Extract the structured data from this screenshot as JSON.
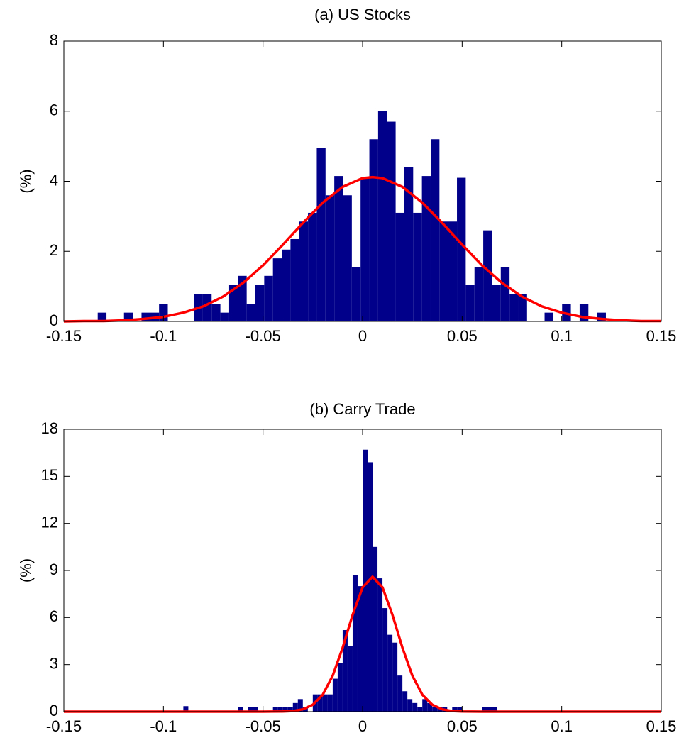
{
  "chart_data": [
    {
      "type": "histogram",
      "title": "(a) US Stocks",
      "ylabel": "(%)",
      "color": "#00008b",
      "bins": [
        -0.133,
        -0.1286,
        -0.1242,
        -0.1198,
        -0.1154,
        -0.111,
        -0.1066,
        -0.1022,
        -0.0978,
        -0.0934,
        -0.089,
        -0.0846,
        -0.0802,
        -0.0758,
        -0.0714,
        -0.067,
        -0.0626,
        -0.0582,
        -0.0538,
        -0.0494,
        -0.045,
        -0.0406,
        -0.0362,
        -0.0318,
        -0.0274,
        -0.023,
        -0.0186,
        -0.0142,
        -0.0098,
        -0.0054,
        -0.001,
        0.0034,
        0.0078,
        0.0122,
        0.0166,
        0.021,
        0.0254,
        0.0298,
        0.0342,
        0.0386,
        0.043,
        0.0474,
        0.0518,
        0.0562,
        0.0606,
        0.065,
        0.0694,
        0.0738,
        0.0782,
        0.0826,
        0.087,
        0.0914,
        0.0958,
        0.1002,
        0.1046,
        0.109,
        0.1134,
        0.1178,
        0.1222
      ],
      "values": [
        0.25,
        0,
        0,
        0.25,
        0,
        0.25,
        0.25,
        0.5,
        0,
        0,
        0,
        0.78,
        0.78,
        0.5,
        0.25,
        1.05,
        1.3,
        0.5,
        1.05,
        1.3,
        1.8,
        2.05,
        2.35,
        2.85,
        3.1,
        4.95,
        3.6,
        4.15,
        3.6,
        1.55,
        4.1,
        5.2,
        6.0,
        5.7,
        3.1,
        4.4,
        3.1,
        4.15,
        5.2,
        2.85,
        2.85,
        4.1,
        1.05,
        1.55,
        2.6,
        1.05,
        1.55,
        0.78,
        0.78,
        0,
        0,
        0.25,
        0,
        0.5,
        0,
        0.5,
        0,
        0.25
      ],
      "overlay": {
        "type": "line",
        "color": "#ff0000",
        "x": [
          -0.15,
          -0.14,
          -0.13,
          -0.12,
          -0.11,
          -0.1,
          -0.09,
          -0.08,
          -0.07,
          -0.06,
          -0.05,
          -0.04,
          -0.03,
          -0.02,
          -0.01,
          0,
          0.005,
          0.01,
          0.02,
          0.03,
          0.04,
          0.05,
          0.06,
          0.07,
          0.08,
          0.09,
          0.1,
          0.11,
          0.12,
          0.13,
          0.14,
          0.15
        ],
        "values": [
          0,
          0.01,
          0.01,
          0.03,
          0.07,
          0.13,
          0.25,
          0.43,
          0.71,
          1.1,
          1.6,
          2.19,
          2.81,
          3.39,
          3.84,
          4.09,
          4.12,
          4.09,
          3.84,
          3.39,
          2.81,
          2.19,
          1.6,
          1.1,
          0.71,
          0.43,
          0.25,
          0.13,
          0.07,
          0.03,
          0.01,
          0.01
        ]
      },
      "xlim": [
        -0.15,
        0.15
      ],
      "xticks": [
        -0.15,
        -0.1,
        -0.05,
        0,
        0.05,
        0.1,
        0.15
      ],
      "ylim": [
        0,
        8
      ],
      "yticks": [
        0,
        2,
        4,
        6,
        8
      ]
    },
    {
      "type": "histogram",
      "title": "(b) Carry Trade",
      "ylabel": "(%)",
      "color": "#00008b",
      "bins": [
        -0.09,
        -0.0875,
        -0.085,
        -0.0825,
        -0.08,
        -0.0775,
        -0.075,
        -0.0725,
        -0.07,
        -0.0675,
        -0.065,
        -0.0625,
        -0.06,
        -0.0575,
        -0.055,
        -0.0525,
        -0.05,
        -0.0475,
        -0.045,
        -0.0425,
        -0.04,
        -0.0375,
        -0.035,
        -0.0325,
        -0.03,
        -0.0275,
        -0.025,
        -0.0225,
        -0.02,
        -0.0175,
        -0.015,
        -0.0125,
        -0.01,
        -0.0075,
        -0.005,
        -0.0025,
        0,
        0.0025,
        0.005,
        0.0075,
        0.01,
        0.0125,
        0.015,
        0.0175,
        0.02,
        0.0225,
        0.025,
        0.0275,
        0.03,
        0.0325,
        0.035,
        0.0375,
        0.04,
        0.0425,
        0.045,
        0.0475,
        0.05,
        0.0525,
        0.055,
        0.0575,
        0.06,
        0.0625,
        0.065,
        0.0675,
        0.07
      ],
      "values": [
        0.35,
        0,
        0,
        0,
        0,
        0,
        0,
        0,
        0,
        0,
        0,
        0.3,
        0,
        0.3,
        0.3,
        0,
        0,
        0,
        0.3,
        0.3,
        0.3,
        0.3,
        0.55,
        0.8,
        0.3,
        0,
        1.1,
        1.1,
        1.1,
        1.1,
        2.1,
        3.1,
        5.2,
        4.2,
        8.7,
        8.0,
        16.7,
        15.9,
        10.5,
        8.5,
        6.6,
        4.9,
        4.4,
        2.3,
        1.3,
        0.8,
        0.55,
        0.3,
        0.8,
        0.55,
        0.3,
        0.3,
        0.3,
        0,
        0.3,
        0.3,
        0,
        0,
        0,
        0,
        0.3,
        0.3,
        0.3,
        0
      ],
      "overlay": {
        "type": "line",
        "color": "#ff0000",
        "x": [
          -0.15,
          -0.1,
          -0.05,
          -0.04,
          -0.035,
          -0.03,
          -0.025,
          -0.02,
          -0.015,
          -0.01,
          -0.005,
          0,
          0.005,
          0.01,
          0.015,
          0.02,
          0.025,
          0.03,
          0.035,
          0.04,
          0.045,
          0.05,
          0.06,
          0.1,
          0.15
        ],
        "values": [
          0,
          0,
          0,
          0.01,
          0.04,
          0.15,
          0.44,
          1.08,
          2.29,
          4.08,
          6.17,
          7.92,
          8.6,
          7.92,
          6.17,
          4.08,
          2.29,
          1.08,
          0.44,
          0.15,
          0.04,
          0.01,
          0,
          0,
          0
        ]
      },
      "xlim": [
        -0.15,
        0.15
      ],
      "xticks": [
        -0.15,
        -0.1,
        -0.05,
        0,
        0.05,
        0.1,
        0.15
      ],
      "ylim": [
        0,
        18
      ],
      "yticks": [
        0,
        3,
        6,
        9,
        12,
        15,
        18
      ]
    }
  ]
}
